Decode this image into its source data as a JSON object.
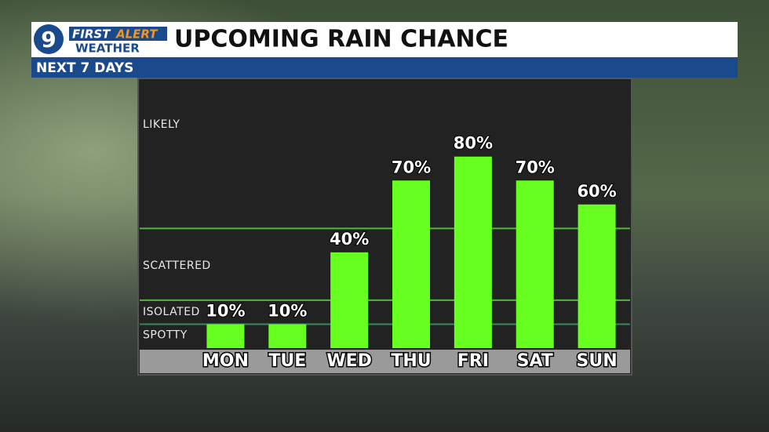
{
  "logo": {
    "number": "9",
    "first": "FIRST",
    "alert": "ALERT",
    "weather": "WEATHER"
  },
  "chart_data": {
    "type": "bar",
    "title": "UPCOMING RAIN CHANCE",
    "subtitle": "NEXT 7 DAYS",
    "categories": [
      "MON",
      "TUE",
      "WED",
      "THU",
      "FRI",
      "SAT",
      "SUN"
    ],
    "values": [
      10,
      10,
      40,
      70,
      80,
      70,
      60
    ],
    "value_labels": [
      "10%",
      "10%",
      "40%",
      "70%",
      "80%",
      "70%",
      "60%"
    ],
    "color": "#66ff1f",
    "ylim": [
      0,
      112
    ],
    "thresholds": [
      10,
      20,
      50
    ],
    "zone_labels": [
      "SPOTTY",
      "ISOLATED",
      "SCATTERED",
      "LIKELY"
    ]
  }
}
